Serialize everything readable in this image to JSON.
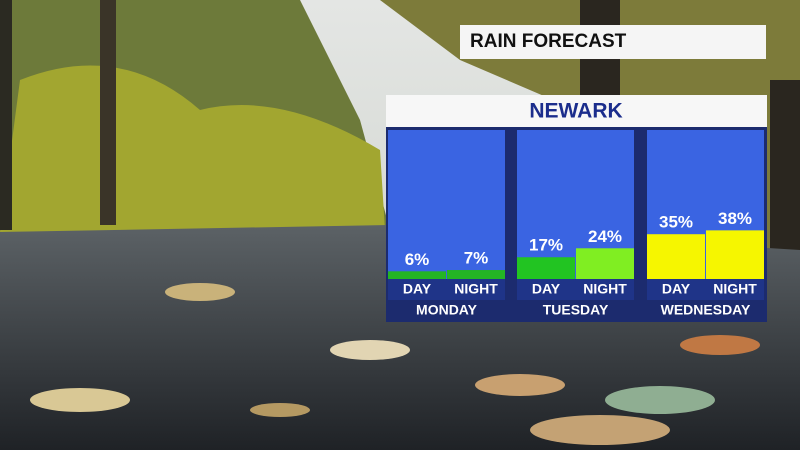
{
  "chart_data": {
    "type": "bar",
    "title": "RAIN FORECAST",
    "subtitle": "NEWARK",
    "groups": [
      "MONDAY",
      "TUESDAY",
      "WEDNESDAY"
    ],
    "categories": [
      "DAY",
      "NIGHT",
      "DAY",
      "NIGHT",
      "DAY",
      "NIGHT"
    ],
    "values": [
      6,
      7,
      17,
      24,
      35,
      38
    ],
    "value_labels": [
      "6%",
      "7%",
      "17%",
      "24%",
      "35%",
      "38%"
    ],
    "colors": [
      "#24b424",
      "#24b424",
      "#22c422",
      "#80ee22",
      "#f6f600",
      "#f6f600"
    ],
    "ylim": [
      0,
      100
    ]
  }
}
